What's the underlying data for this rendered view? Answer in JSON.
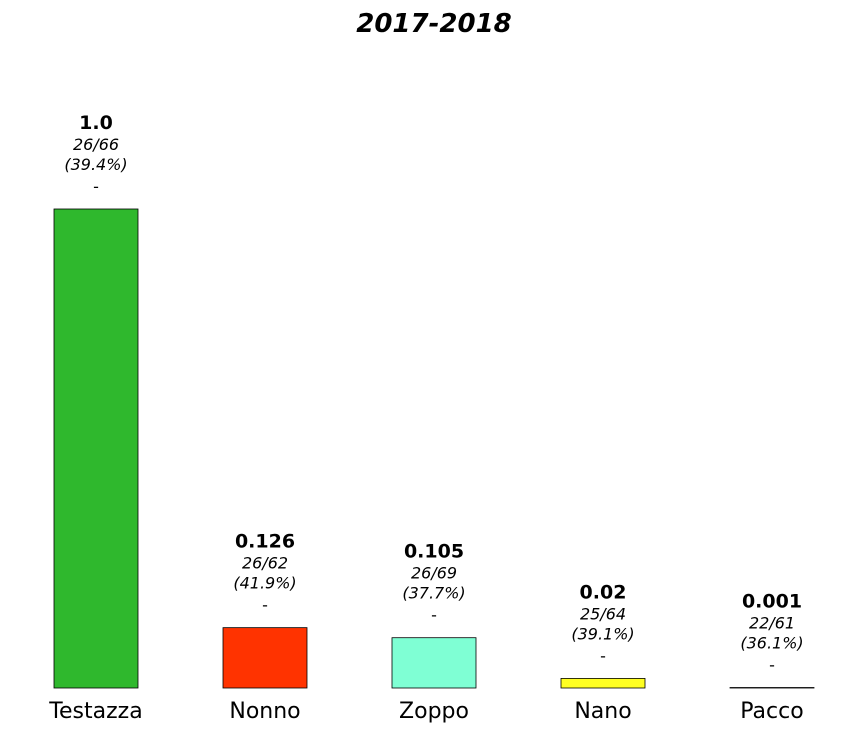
{
  "chart_data": {
    "type": "bar",
    "title": "2017-2018",
    "xlabel": "",
    "ylabel": "",
    "ylim": [
      0,
      1.0
    ],
    "grid": false,
    "categories": [
      "Testazza",
      "Nonno",
      "Zoppo",
      "Nano",
      "Pacco"
    ],
    "values": [
      1.0,
      0.126,
      0.105,
      0.02,
      0.001
    ],
    "value_labels": [
      "1.0",
      "0.126",
      "0.105",
      "0.02",
      "0.001"
    ],
    "ratios": [
      "26/66",
      "26/62",
      "26/69",
      "25/64",
      "22/61"
    ],
    "percentages": [
      "(39.4%)",
      "(41.9%)",
      "(37.7%)",
      "(39.1%)",
      "(36.1%)"
    ],
    "dash_labels": [
      "-",
      "-",
      "-",
      "-",
      "-"
    ],
    "colors": [
      "#2fb82d",
      "#ff3300",
      "#7fffd4",
      "#ffff22",
      "#ffffff"
    ]
  }
}
